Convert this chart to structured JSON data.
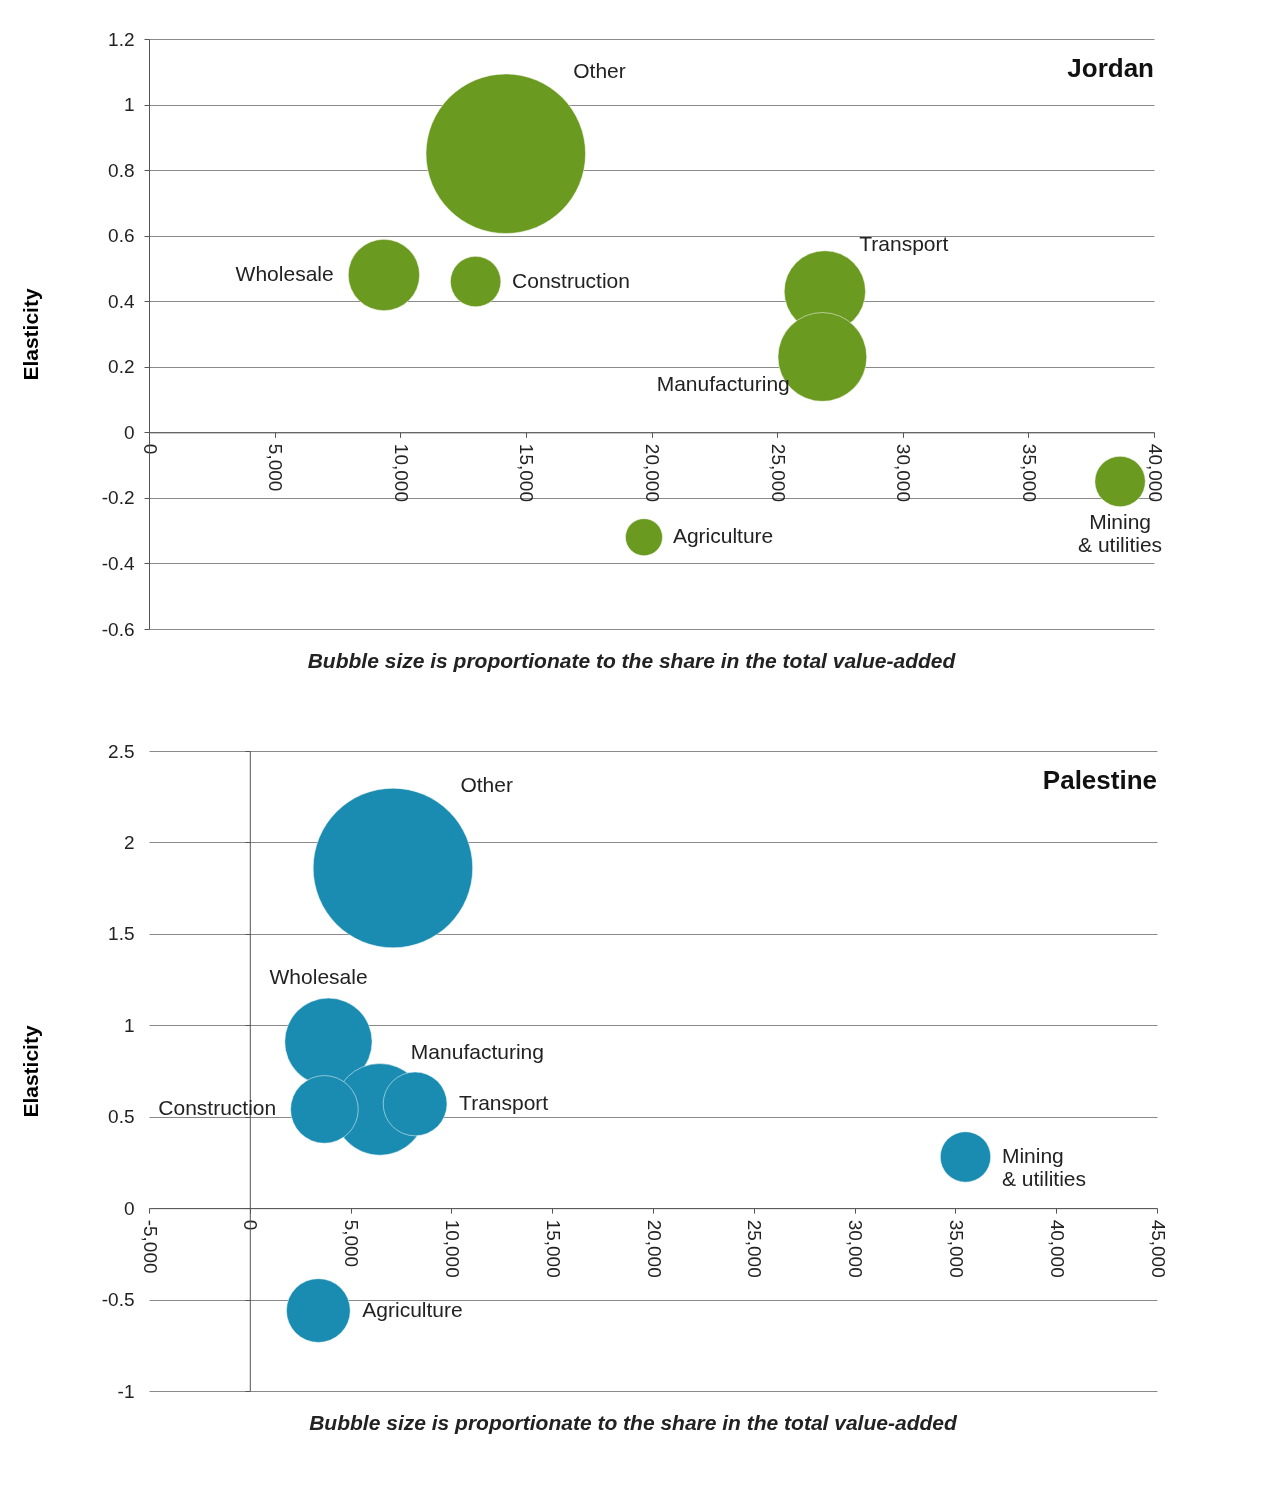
{
  "chart_data": [
    {
      "type": "bubble",
      "title": "Jordan",
      "ylabel": "Elasticity",
      "annotations": [
        "Bubble size is proportionate to the share in the total value-added"
      ],
      "xlim": [
        0,
        40000
      ],
      "xticks": [
        0,
        {
          "value": 5000,
          "label": "5,000"
        },
        {
          "value": 10000,
          "label": "10,000"
        },
        {
          "value": 15000,
          "label": "15,000"
        },
        {
          "value": 20000,
          "label": "20,000"
        },
        {
          "value": 25000,
          "label": "25,000"
        },
        {
          "value": 30000,
          "label": "30,000"
        },
        {
          "value": 35000,
          "label": "35,000"
        },
        {
          "value": 40000,
          "label": "40,000"
        }
      ],
      "ylim": [
        -0.6,
        1.2
      ],
      "yticks": [
        -0.6,
        -0.4,
        -0.2,
        0,
        0.2,
        0.4,
        0.6,
        0.8,
        1,
        1.2
      ],
      "grid": "y",
      "series": [
        {
          "name": "Other",
          "color": "#6a9a1f",
          "x": [
            14200
          ],
          "values": [
            0.85
          ],
          "sizes": [
            1
          ]
        },
        {
          "name": "Wholesale",
          "color": "#6a9a1f",
          "x": [
            9350
          ],
          "values": [
            0.48
          ],
          "sizes": [
            0.2
          ]
        },
        {
          "name": "Construction",
          "color": "#6a9a1f",
          "x": [
            13000
          ],
          "values": [
            0.46
          ],
          "sizes": [
            0.1
          ]
        },
        {
          "name": "Transport",
          "color": "#6a9a1f",
          "x": [
            26900
          ],
          "values": [
            0.43
          ],
          "sizes": [
            0.26
          ]
        },
        {
          "name": "Manufacturing",
          "color": "#6a9a1f",
          "x": [
            26800
          ],
          "values": [
            0.23
          ],
          "sizes": [
            0.31
          ]
        },
        {
          "name": "Agriculture",
          "color": "#6a9a1f",
          "x": [
            19700
          ],
          "values": [
            -0.32
          ],
          "sizes": [
            0.054
          ]
        },
        {
          "name": "Mining & utilities",
          "color": "#6a9a1f",
          "x": [
            38650
          ],
          "values": [
            -0.15
          ],
          "sizes": [
            0.1
          ]
        }
      ]
    },
    {
      "type": "bubble",
      "title": "Palestine",
      "ylabel": "Elasticity",
      "annotations": [
        "Bubble size is proportionate to the share in the total value-added"
      ],
      "xlim": [
        -5000,
        45000
      ],
      "xticks": [
        {
          "value": -5000,
          "label": "-5,000"
        },
        0,
        {
          "value": 5000,
          "label": "5,000"
        },
        {
          "value": 10000,
          "label": "10,000"
        },
        {
          "value": 15000,
          "label": "15,000"
        },
        {
          "value": 20000,
          "label": "20,000"
        },
        {
          "value": 25000,
          "label": "25,000"
        },
        {
          "value": 30000,
          "label": "30,000"
        },
        {
          "value": 35000,
          "label": "35,000"
        },
        {
          "value": 40000,
          "label": "40,000"
        },
        {
          "value": 45000,
          "label": "45,000"
        }
      ],
      "ylim": [
        -1,
        2.5
      ],
      "yticks": [
        -1,
        -0.5,
        0,
        0.5,
        1,
        1.5,
        2,
        2.5
      ],
      "grid": "y",
      "series": [
        {
          "name": "Other",
          "color": "#1a8cb2",
          "x": [
            7100
          ],
          "values": [
            1.86
          ],
          "sizes": [
            1
          ]
        },
        {
          "name": "Wholesale",
          "color": "#1a8cb2",
          "x": [
            3900
          ],
          "values": [
            0.91
          ],
          "sizes": [
            0.3
          ]
        },
        {
          "name": "Manufacturing",
          "color": "#1a8cb2",
          "x": [
            6450
          ],
          "values": [
            0.54
          ],
          "sizes": [
            0.33
          ]
        },
        {
          "name": "Construction",
          "color": "#1a8cb2",
          "x": [
            3700
          ],
          "values": [
            0.54
          ],
          "sizes": [
            0.18
          ]
        },
        {
          "name": "Transport",
          "color": "#1a8cb2",
          "x": [
            8200
          ],
          "values": [
            0.57
          ],
          "sizes": [
            0.16
          ]
        },
        {
          "name": "Mining & utilities",
          "color": "#1a8cb2",
          "x": [
            35500
          ],
          "values": [
            0.28
          ],
          "sizes": [
            0.1
          ]
        },
        {
          "name": "Agriculture",
          "color": "#1a8cb2",
          "x": [
            3400
          ],
          "values": [
            -0.56
          ],
          "sizes": [
            0.16
          ]
        }
      ]
    }
  ]
}
